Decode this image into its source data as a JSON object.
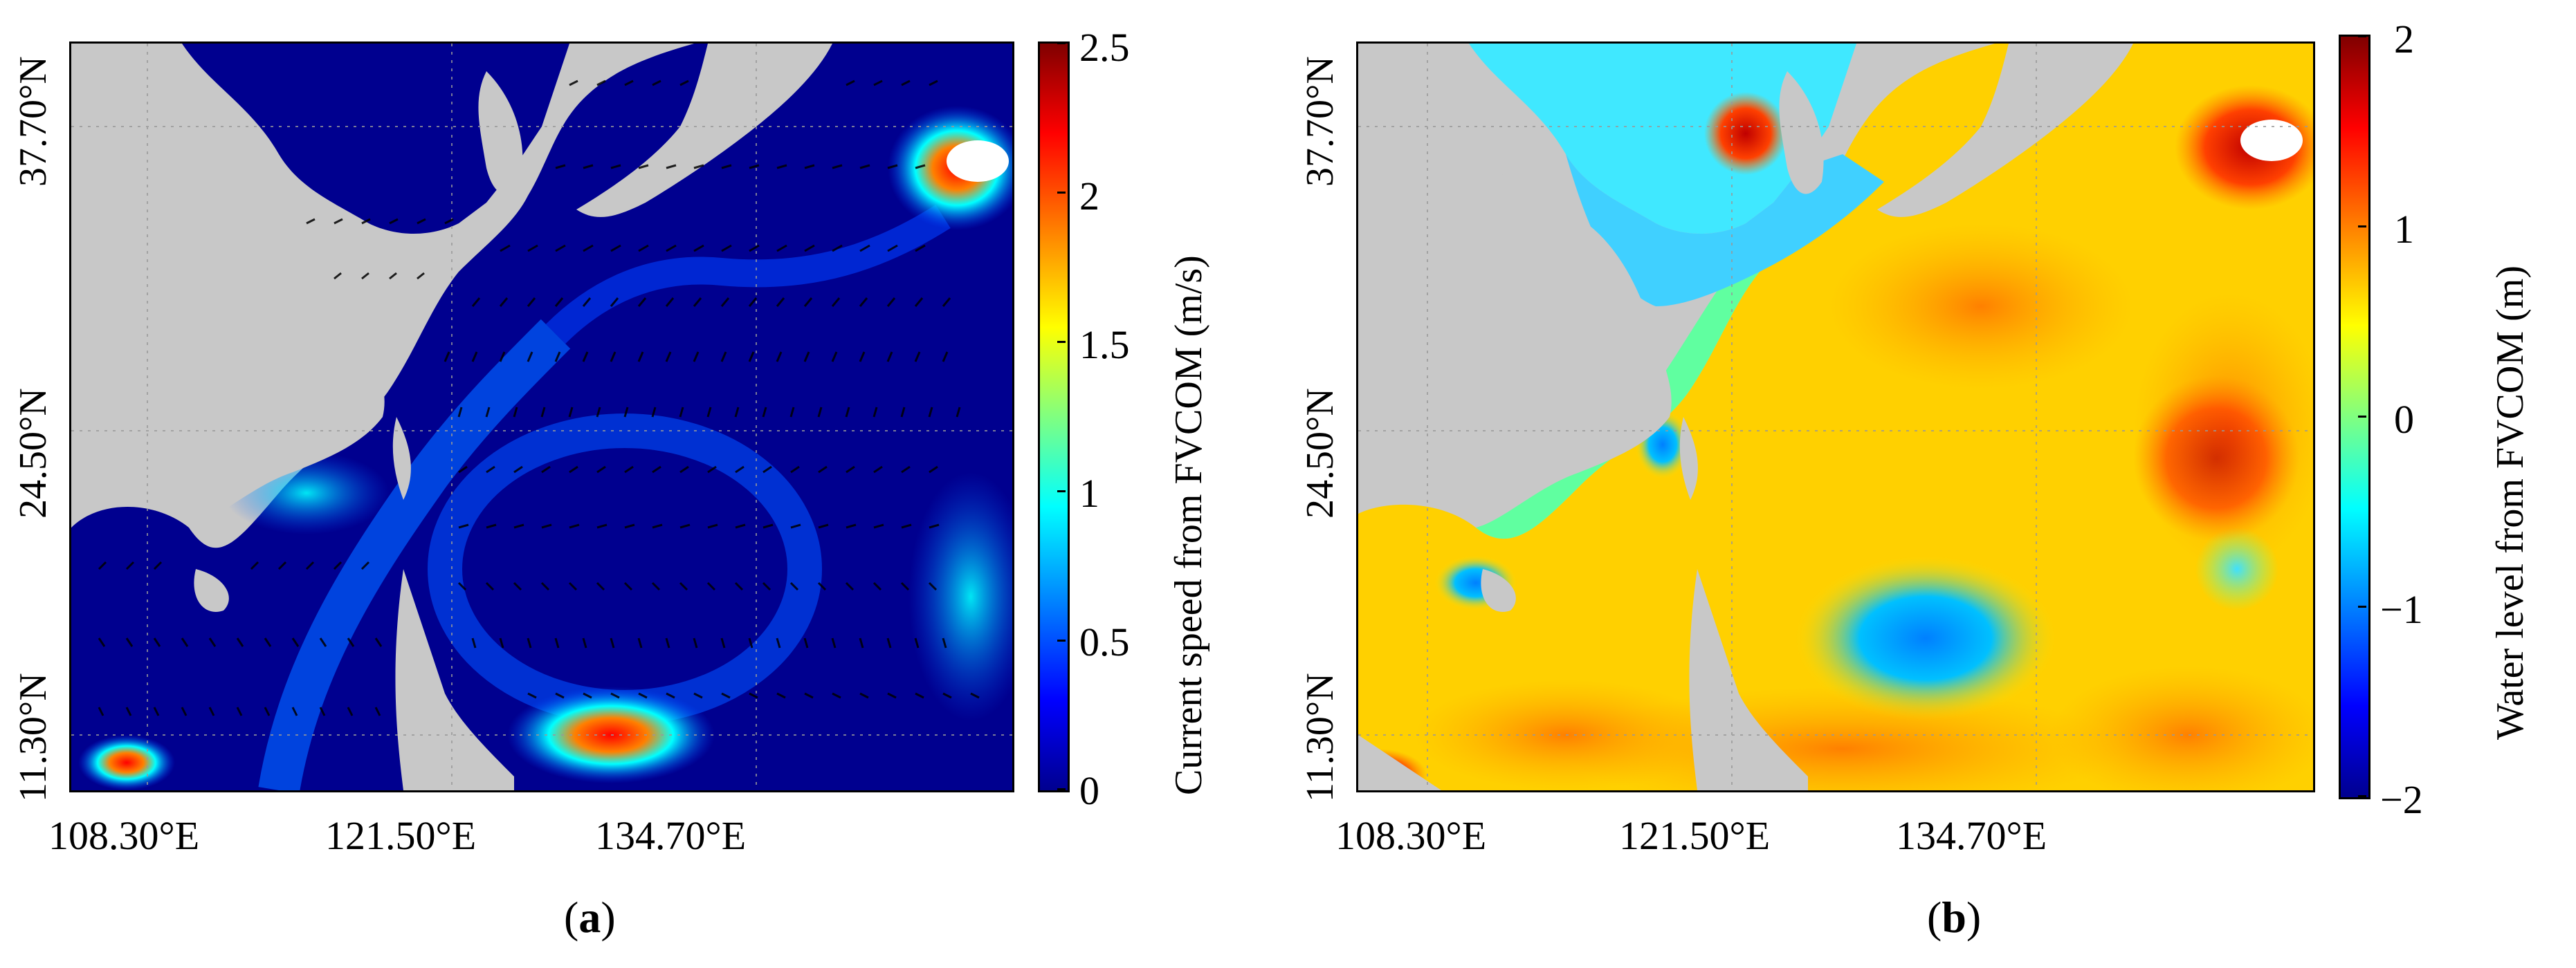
{
  "panel_a": {
    "caption_open": "(",
    "caption_letter": "a",
    "caption_close": ")",
    "y_ticks": [
      "37.70°N",
      "24.50°N",
      "11.30°N"
    ],
    "x_ticks": [
      "108.30°E",
      "121.50°E",
      "134.70°E"
    ],
    "colorbar_title": "Current speed from FVCOM (m/s)",
    "colorbar_ticks": [
      "2.5",
      "2",
      "1.5",
      "1",
      "0.5",
      "0"
    ],
    "colorbar_colormap": "jet",
    "colorbar_range": [
      0,
      2.5
    ]
  },
  "panel_b": {
    "caption_open": "(",
    "caption_letter": "b",
    "caption_close": ")",
    "y_ticks": [
      "37.70°N",
      "24.50°N",
      "11.30°N"
    ],
    "x_ticks": [
      "108.30°E",
      "121.50°E",
      "134.70°E"
    ],
    "colorbar_title": "Water level from FVCOM (m)",
    "colorbar_ticks": [
      "2",
      "1",
      "0",
      "−1",
      "−2"
    ],
    "colorbar_colormap": "jet",
    "colorbar_range": [
      -2,
      2
    ]
  },
  "colors": {
    "land": "#c8c8c8",
    "jet_dark_blue": "#00008f",
    "jet_blue": "#0000ff",
    "jet_cyan": "#00ffff",
    "jet_yellow": "#ffff00",
    "jet_red": "#ff0000",
    "jet_dark_red": "#800000"
  }
}
